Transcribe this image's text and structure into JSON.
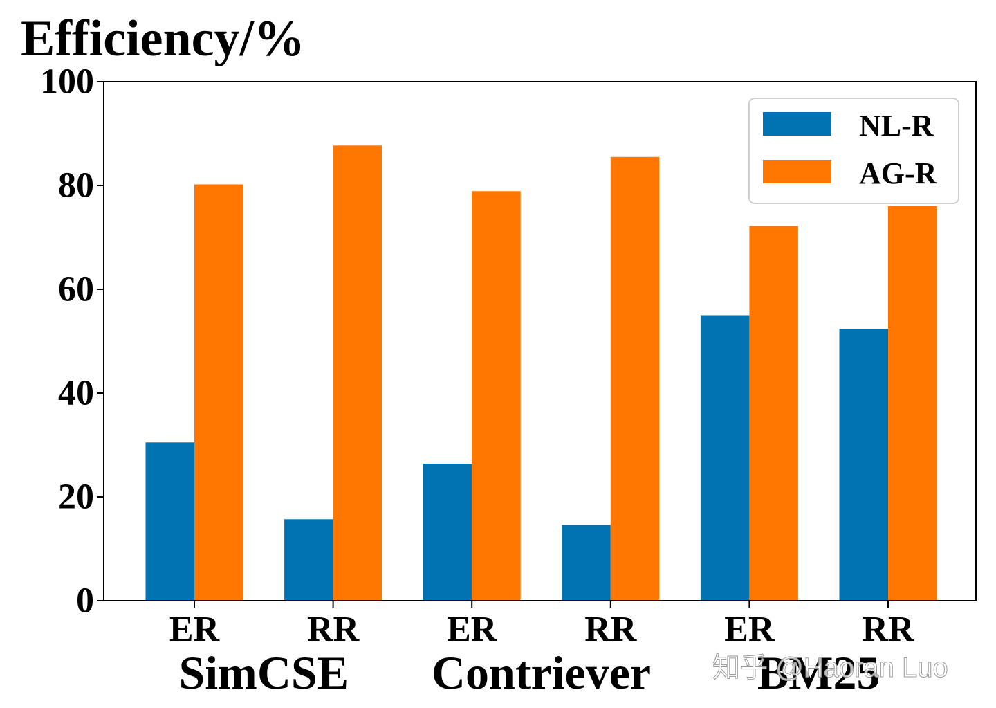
{
  "chart_data": {
    "type": "bar",
    "ylabel": "Efficiency/%",
    "ylim": [
      0,
      100
    ],
    "yticks": [
      "0",
      "20",
      "40",
      "60",
      "80",
      "100"
    ],
    "categories": [
      "ER",
      "RR",
      "ER",
      "RR",
      "ER",
      "RR"
    ],
    "groups": [
      {
        "label": "SimCSE",
        "span": [
          0,
          1
        ]
      },
      {
        "label": "Contriever",
        "span": [
          2,
          3
        ]
      },
      {
        "label": "BM25",
        "span": [
          4,
          5
        ]
      }
    ],
    "series": [
      {
        "name": "NL-R",
        "color": "#0173b2",
        "values": [
          30.5,
          15.7,
          26.4,
          14.6,
          55.0,
          52.4
        ]
      },
      {
        "name": "AG-R",
        "color": "#ff7700",
        "values": [
          80.2,
          87.7,
          78.9,
          85.5,
          72.2,
          76.0
        ]
      }
    ],
    "legend": "top-right",
    "grid": false
  },
  "watermark": "知乎 @Haoran Luo"
}
